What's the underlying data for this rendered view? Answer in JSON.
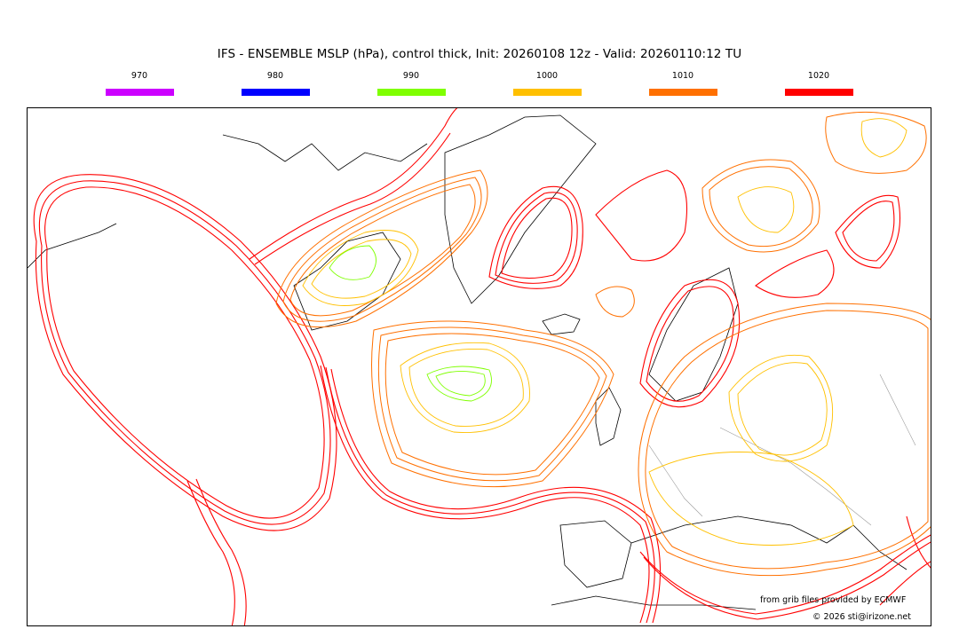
{
  "header": {
    "title": "IFS - ENSEMBLE MSLP (hPa), control thick, Init: 20260108 12z - Valid: 20260110:12 TU"
  },
  "legend": [
    {
      "label": "970",
      "color": "#cc00ff"
    },
    {
      "label": "980",
      "color": "#0000ff"
    },
    {
      "label": "990",
      "color": "#7fff00"
    },
    {
      "label": "1000",
      "color": "#ffc000"
    },
    {
      "label": "1010",
      "color": "#ff7000"
    },
    {
      "label": "1020",
      "color": "#ff0000"
    }
  ],
  "map": {
    "field": "MSLP isobar spaghetti (ensemble members)",
    "isobar_colors": {
      "990": "#7fff00",
      "1000": "#ffc000",
      "1010": "#ff7000",
      "1020": "#ff0000"
    },
    "coastline_color": "#000000",
    "border_color": "#9a9a9a"
  },
  "footer": {
    "credit": "from grib files provided by ECMWF",
    "copyright": "© 2026 sti@irizone.net"
  }
}
